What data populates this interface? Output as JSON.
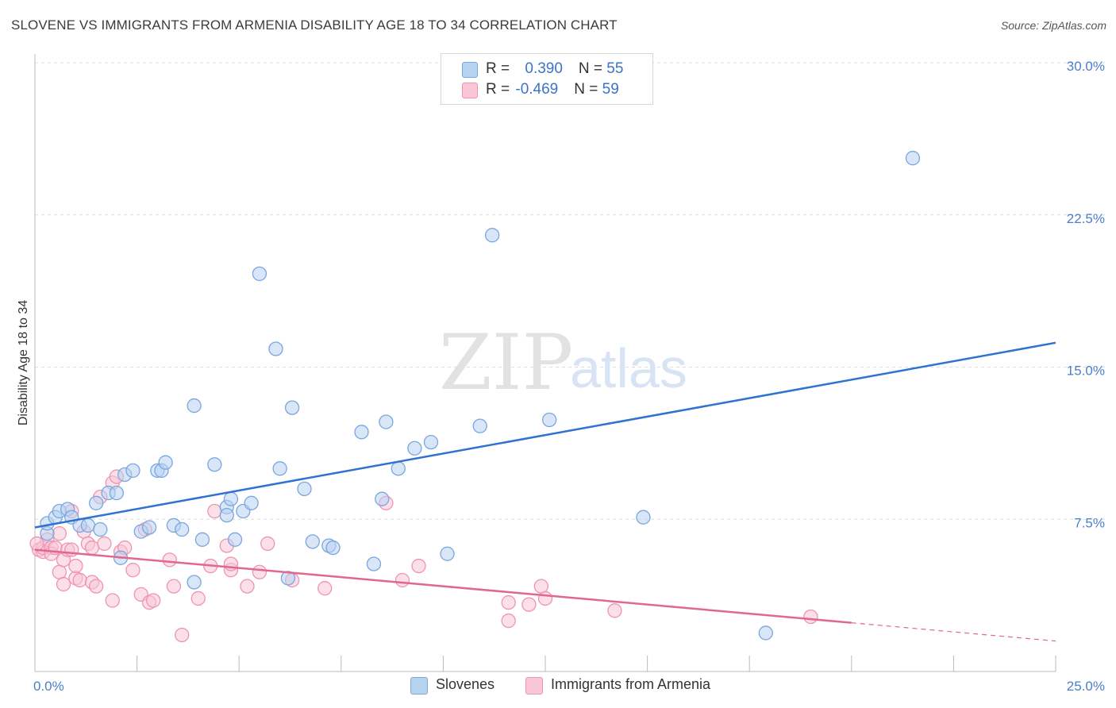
{
  "header": {
    "title": "SLOVENE VS IMMIGRANTS FROM ARMENIA DISABILITY AGE 18 TO 34 CORRELATION CHART",
    "source": "Source: ZipAtlas.com"
  },
  "watermark": {
    "zip": "ZIP",
    "atlas": "atlas"
  },
  "legend": {
    "rows": [
      {
        "r_label": "R = ",
        "r_value": "0.390",
        "n_label": "N = ",
        "n_value": "55"
      },
      {
        "r_label": "R = ",
        "r_value": "-0.469",
        "n_label": "N = ",
        "n_value": "59"
      }
    ]
  },
  "bottom_legend": {
    "series1": "Slovenes",
    "series2": "Immigrants from Armenia"
  },
  "colors": {
    "blue_fill": "#b8d2f2",
    "blue_stroke": "#7aa6de",
    "blue_line": "#2f72d0",
    "pink_fill": "#f8c6d6",
    "pink_stroke": "#ee94b2",
    "pink_line": "#e2678f",
    "tick": "#4a7fcb",
    "grid": "#dcdcdc"
  },
  "chart_data": {
    "type": "scatter",
    "xlabel": "",
    "ylabel": "Disability Age 18 to 34",
    "xlim": [
      0,
      25
    ],
    "ylim": [
      0,
      30
    ],
    "y_ticks": [
      7.5,
      15.0,
      22.5,
      30.0
    ],
    "y_tick_labels": [
      "7.5%",
      "15.0%",
      "22.5%",
      "30.0%"
    ],
    "x_tick_labels": {
      "min": "0.0%",
      "max": "25.0%"
    },
    "grid": "horizontal dashed",
    "series": [
      {
        "name": "Slovenes",
        "color": "#b8d2f2",
        "trend": {
          "x": [
            0,
            25
          ],
          "y": [
            7.1,
            16.2
          ],
          "dashed_from": null
        },
        "points": [
          [
            0.3,
            6.8
          ],
          [
            0.3,
            7.3
          ],
          [
            0.5,
            7.6
          ],
          [
            0.6,
            7.9
          ],
          [
            0.8,
            8.0
          ],
          [
            0.9,
            7.6
          ],
          [
            1.1,
            7.2
          ],
          [
            1.3,
            7.2
          ],
          [
            1.5,
            8.3
          ],
          [
            1.6,
            7.0
          ],
          [
            1.8,
            8.8
          ],
          [
            2.0,
            8.8
          ],
          [
            2.1,
            5.6
          ],
          [
            2.2,
            9.7
          ],
          [
            2.4,
            9.9
          ],
          [
            2.6,
            6.9
          ],
          [
            2.8,
            7.1
          ],
          [
            3.0,
            9.9
          ],
          [
            3.1,
            9.9
          ],
          [
            3.2,
            10.3
          ],
          [
            3.4,
            7.2
          ],
          [
            3.6,
            7.0
          ],
          [
            3.9,
            4.4
          ],
          [
            3.9,
            13.1
          ],
          [
            4.1,
            6.5
          ],
          [
            4.4,
            10.2
          ],
          [
            4.7,
            8.1
          ],
          [
            4.7,
            7.7
          ],
          [
            4.8,
            8.5
          ],
          [
            4.9,
            6.5
          ],
          [
            5.1,
            7.9
          ],
          [
            5.3,
            8.3
          ],
          [
            5.5,
            19.6
          ],
          [
            5.9,
            15.9
          ],
          [
            6.0,
            10.0
          ],
          [
            6.2,
            4.6
          ],
          [
            6.3,
            13.0
          ],
          [
            6.6,
            9.0
          ],
          [
            6.8,
            6.4
          ],
          [
            7.2,
            6.2
          ],
          [
            7.3,
            6.1
          ],
          [
            8.0,
            11.8
          ],
          [
            8.3,
            5.3
          ],
          [
            8.5,
            8.5
          ],
          [
            8.6,
            12.3
          ],
          [
            8.9,
            10.0
          ],
          [
            9.3,
            11.0
          ],
          [
            9.7,
            11.3
          ],
          [
            10.1,
            5.8
          ],
          [
            10.9,
            12.1
          ],
          [
            11.2,
            21.5
          ],
          [
            12.6,
            12.4
          ],
          [
            14.9,
            7.6
          ],
          [
            17.9,
            1.9
          ],
          [
            21.5,
            25.3
          ]
        ]
      },
      {
        "name": "Immigrants from Armenia",
        "color": "#f8c6d6",
        "trend": {
          "x": [
            0,
            20,
            25
          ],
          "y": [
            6.0,
            2.4,
            1.5
          ],
          "dashed_from": 20
        },
        "points": [
          [
            0.1,
            6.0
          ],
          [
            0.2,
            5.9
          ],
          [
            0.2,
            6.1
          ],
          [
            0.3,
            6.5
          ],
          [
            0.4,
            6.1
          ],
          [
            0.4,
            5.8
          ],
          [
            0.5,
            6.1
          ],
          [
            0.6,
            4.9
          ],
          [
            0.6,
            6.8
          ],
          [
            0.7,
            5.5
          ],
          [
            0.7,
            4.3
          ],
          [
            0.8,
            6.0
          ],
          [
            0.9,
            6.0
          ],
          [
            0.9,
            7.9
          ],
          [
            1.0,
            4.6
          ],
          [
            1.0,
            5.2
          ],
          [
            1.1,
            4.5
          ],
          [
            1.2,
            6.9
          ],
          [
            1.3,
            6.3
          ],
          [
            1.4,
            6.1
          ],
          [
            1.4,
            4.4
          ],
          [
            1.5,
            4.2
          ],
          [
            1.6,
            8.6
          ],
          [
            1.7,
            6.3
          ],
          [
            1.9,
            3.5
          ],
          [
            1.9,
            9.3
          ],
          [
            2.0,
            9.6
          ],
          [
            2.1,
            5.9
          ],
          [
            2.2,
            6.1
          ],
          [
            2.4,
            5.0
          ],
          [
            2.6,
            3.8
          ],
          [
            2.7,
            7.0
          ],
          [
            2.8,
            3.4
          ],
          [
            2.9,
            3.5
          ],
          [
            3.3,
            5.5
          ],
          [
            3.4,
            4.2
          ],
          [
            3.6,
            1.8
          ],
          [
            4.0,
            3.6
          ],
          [
            4.3,
            5.2
          ],
          [
            4.4,
            7.9
          ],
          [
            4.7,
            6.2
          ],
          [
            4.8,
            5.0
          ],
          [
            4.8,
            5.3
          ],
          [
            5.2,
            4.2
          ],
          [
            5.5,
            4.9
          ],
          [
            5.7,
            6.3
          ],
          [
            6.3,
            4.5
          ],
          [
            7.1,
            4.1
          ],
          [
            8.6,
            8.3
          ],
          [
            9.0,
            4.5
          ],
          [
            9.4,
            5.2
          ],
          [
            11.6,
            3.4
          ],
          [
            11.6,
            2.5
          ],
          [
            12.1,
            3.3
          ],
          [
            12.4,
            4.2
          ],
          [
            12.5,
            3.6
          ],
          [
            14.2,
            3.0
          ],
          [
            19.0,
            2.7
          ],
          [
            0.05,
            6.3
          ]
        ]
      }
    ]
  }
}
